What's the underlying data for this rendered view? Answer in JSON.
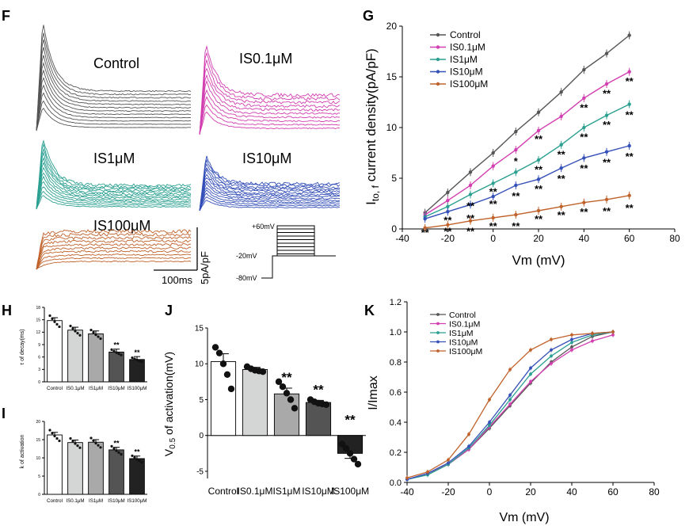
{
  "chart_data": [
    {
      "panel": "F",
      "type": "line",
      "trace_labels": [
        "Control",
        "IS0.1μM",
        "IS1μM",
        "IS10μM",
        "IS100μM"
      ],
      "trace_colors": [
        "#555555",
        "#d23fb0",
        "#2ba091",
        "#3550b8",
        "#c0622b"
      ],
      "scalebar": {
        "x": "100ms",
        "y": "5pA/pF"
      },
      "protocol": {
        "levels": [
          "+60mV",
          "-20mV",
          "-80mV"
        ]
      }
    },
    {
      "panel": "G",
      "type": "line",
      "xlabel": "Vm (mV)",
      "ylabel_main": "I",
      "ylabel_sub": "to, f",
      "ylabel_rest": " current density(pA/pF)",
      "xlim": [
        -40,
        80
      ],
      "ylim": [
        0,
        20
      ],
      "xticks": [
        "-40",
        "-20",
        "0",
        "20",
        "40",
        "60",
        "80"
      ],
      "yticks": [
        "0",
        "5",
        "10",
        "15",
        "20"
      ],
      "x": [
        -30,
        -20,
        -10,
        0,
        10,
        20,
        30,
        40,
        50,
        60
      ],
      "series": [
        {
          "name": "Control",
          "color": "#555555",
          "values": [
            1.6,
            3.6,
            5.6,
            7.5,
            9.6,
            11.5,
            13.5,
            15.7,
            17.3,
            19.1
          ]
        },
        {
          "name": "IS0.1μM",
          "color": "#d23fb0",
          "values": [
            1.4,
            2.8,
            4.3,
            6.2,
            7.8,
            9.7,
            11.1,
            12.9,
            14.3,
            15.5
          ]
        },
        {
          "name": "IS1μM",
          "color": "#2ba091",
          "values": [
            1.2,
            2.2,
            3.4,
            4.5,
            5.6,
            6.8,
            8.3,
            10.0,
            11.2,
            12.3
          ]
        },
        {
          "name": "IS10μM",
          "color": "#3550b8",
          "values": [
            1.0,
            1.7,
            2.4,
            3.2,
            4.3,
            4.9,
            6.0,
            7.0,
            7.6,
            8.2
          ]
        },
        {
          "name": "IS100μM",
          "color": "#c0622b",
          "values": [
            0.1,
            0.4,
            0.8,
            1.1,
            1.4,
            1.8,
            2.2,
            2.6,
            2.9,
            3.3
          ]
        }
      ],
      "annotations": [
        {
          "label": "**",
          "x": -30,
          "y": -0.3
        },
        {
          "label": "**",
          "x": -20,
          "y": 0.9
        },
        {
          "label": "**",
          "x": -20,
          "y": -0.2
        },
        {
          "label": "**",
          "x": -10,
          "y": 2.3
        },
        {
          "label": "**",
          "x": -10,
          "y": 1.1
        },
        {
          "label": "**",
          "x": -10,
          "y": -0.2
        },
        {
          "label": "**",
          "x": 0,
          "y": 3.7
        },
        {
          "label": "**",
          "x": 0,
          "y": 2.5
        },
        {
          "label": "**",
          "x": 0,
          "y": 0.3
        },
        {
          "label": "*",
          "x": 10,
          "y": 6.7
        },
        {
          "label": "**",
          "x": 10,
          "y": 3.3
        },
        {
          "label": "**",
          "x": 10,
          "y": 0.3
        },
        {
          "label": "**",
          "x": 20,
          "y": 8.9
        },
        {
          "label": "**",
          "x": 20,
          "y": 5.9
        },
        {
          "label": "**",
          "x": 20,
          "y": 4.0
        },
        {
          "label": "**",
          "x": 20,
          "y": 1.0
        },
        {
          "label": "**",
          "x": 30,
          "y": 7.4
        },
        {
          "label": "**",
          "x": 30,
          "y": 5.0
        },
        {
          "label": "**",
          "x": 30,
          "y": 1.4
        },
        {
          "label": "**",
          "x": 40,
          "y": 12.0
        },
        {
          "label": "**",
          "x": 40,
          "y": 9.1
        },
        {
          "label": "**",
          "x": 40,
          "y": 6.0
        },
        {
          "label": "**",
          "x": 40,
          "y": 1.7
        },
        {
          "label": "**",
          "x": 50,
          "y": 13.4
        },
        {
          "label": "**",
          "x": 50,
          "y": 10.3
        },
        {
          "label": "**",
          "x": 50,
          "y": 6.6
        },
        {
          "label": "**",
          "x": 50,
          "y": 1.8
        },
        {
          "label": "**",
          "x": 60,
          "y": 14.6
        },
        {
          "label": "**",
          "x": 60,
          "y": 11.3
        },
        {
          "label": "**",
          "x": 60,
          "y": 7.2
        },
        {
          "label": "**",
          "x": 60,
          "y": 2.1
        }
      ],
      "legend": "top-left"
    },
    {
      "panel": "H",
      "type": "bar",
      "ylabel": "τ of decay(ms)",
      "ylim": [
        0,
        18
      ],
      "yticks": [
        "0",
        "3",
        "6",
        "9",
        "12",
        "15",
        "18"
      ],
      "categories": [
        "Control",
        "IS0.1μM",
        "IS1μM",
        "IS10μM",
        "IS100μM"
      ],
      "values": [
        14.8,
        12.5,
        11.6,
        7.2,
        5.4
      ],
      "stars": [
        "",
        "",
        "",
        "**",
        "**"
      ]
    },
    {
      "panel": "I",
      "type": "bar",
      "ylabel": "k of activation",
      "ylim": [
        0,
        20
      ],
      "yticks": [
        "0",
        "5",
        "10",
        "15",
        "20"
      ],
      "categories": [
        "Control",
        "IS0.1μM",
        "IS1μM",
        "IS10μM",
        "IS100μM"
      ],
      "values": [
        16.3,
        14.2,
        14.3,
        12.2,
        9.8
      ],
      "stars": [
        "",
        "",
        "",
        "**",
        "**"
      ]
    },
    {
      "panel": "J",
      "type": "bar",
      "ylabel_pre": "V",
      "ylabel_sub": "0.5",
      "ylabel_post": " of activation(mV)",
      "ylim": [
        -6,
        15
      ],
      "yticks": [
        "-5",
        "0",
        "5",
        "10",
        "15"
      ],
      "categories": [
        "Control",
        "IS0.1μM",
        "IS1μM",
        "IS10μM",
        "IS100μM"
      ],
      "values": [
        10.3,
        9.2,
        5.8,
        4.6,
        -2.5
      ],
      "sem": [
        1.1,
        0.3,
        0.8,
        0.3,
        0.7
      ],
      "points": [
        [
          12.3,
          11.5,
          10.0,
          8.5,
          6.5
        ],
        [
          9.6,
          9.3,
          9.1,
          9.0,
          8.9
        ],
        [
          7.5,
          6.8,
          5.9,
          5.0,
          3.8
        ],
        [
          5.0,
          4.7,
          4.5,
          4.4,
          4.3
        ],
        [
          -1.2,
          -1.8,
          -2.5,
          -3.3,
          -4.0
        ]
      ],
      "fills": [
        "#ffffff",
        "#d3d6d4",
        "#a9a9a9",
        "#545454",
        "#222222"
      ],
      "stars": [
        "",
        "",
        "**",
        "**",
        "**"
      ]
    },
    {
      "panel": "K",
      "type": "line",
      "xlabel": "Vm (mV)",
      "ylabel": "I/Imax",
      "xlim": [
        -40,
        80
      ],
      "ylim": [
        0.0,
        1.2
      ],
      "xticks": [
        "-40",
        "-20",
        "0",
        "20",
        "40",
        "60",
        "80"
      ],
      "yticks": [
        "0.0",
        "0.2",
        "0.4",
        "0.6",
        "0.8",
        "1.0",
        "1.2"
      ],
      "x": [
        -40,
        -30,
        -20,
        -10,
        0,
        10,
        20,
        30,
        40,
        50,
        60
      ],
      "series": [
        {
          "name": "Control",
          "color": "#555555",
          "values": [
            0.02,
            0.06,
            0.12,
            0.22,
            0.36,
            0.51,
            0.66,
            0.8,
            0.9,
            0.97,
            1.0
          ]
        },
        {
          "name": "IS0.1μM",
          "color": "#d23fb0",
          "values": [
            0.02,
            0.06,
            0.12,
            0.22,
            0.37,
            0.52,
            0.67,
            0.79,
            0.88,
            0.94,
            0.98
          ]
        },
        {
          "name": "IS1μM",
          "color": "#2ba091",
          "values": [
            0.02,
            0.05,
            0.12,
            0.23,
            0.38,
            0.55,
            0.72,
            0.84,
            0.93,
            0.98,
            1.0
          ]
        },
        {
          "name": "IS10μM",
          "color": "#3550b8",
          "values": [
            0.02,
            0.06,
            0.13,
            0.24,
            0.4,
            0.58,
            0.76,
            0.88,
            0.95,
            0.99,
            1.0
          ]
        },
        {
          "name": "IS100μM",
          "color": "#c0622b",
          "values": [
            0.03,
            0.07,
            0.15,
            0.32,
            0.55,
            0.75,
            0.88,
            0.95,
            0.98,
            0.99,
            1.0
          ]
        }
      ],
      "legend": "top-left"
    }
  ]
}
